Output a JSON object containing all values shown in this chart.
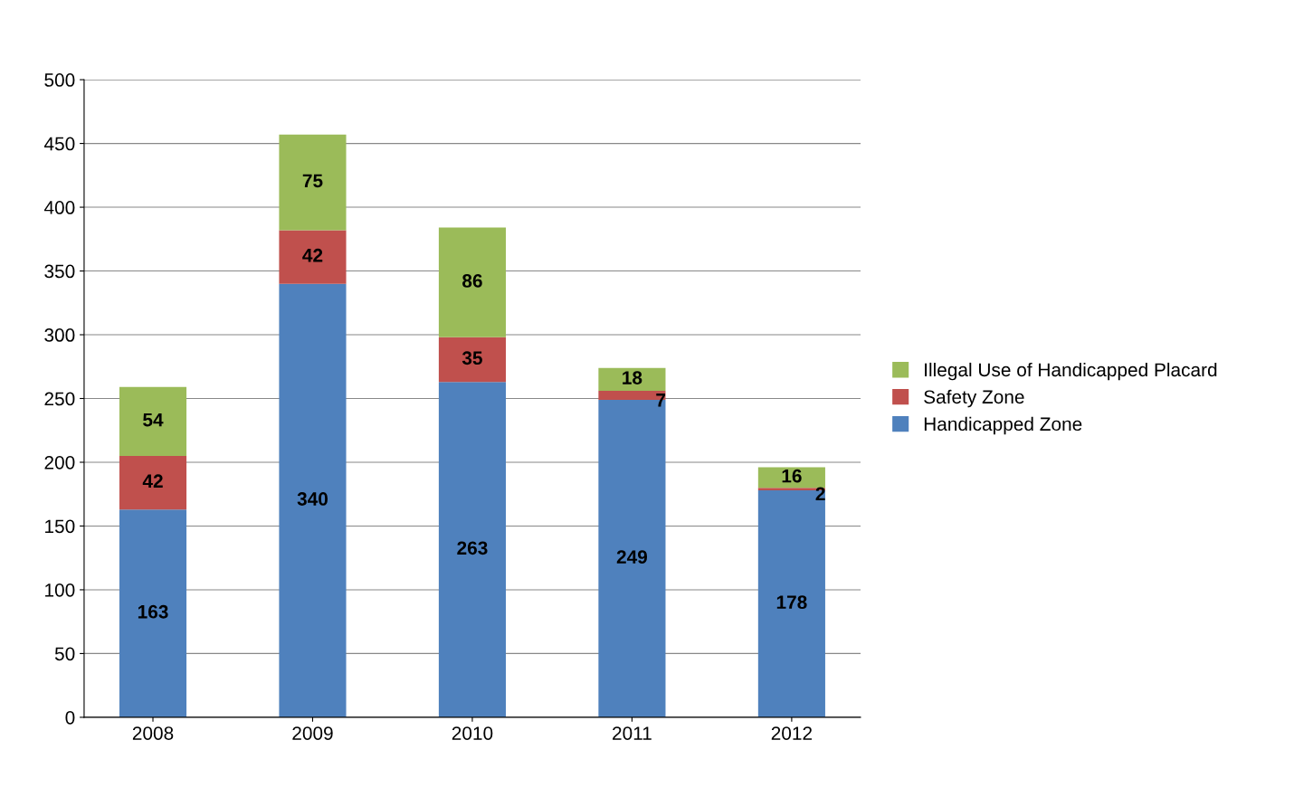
{
  "chart_data": {
    "type": "bar",
    "stacked": true,
    "categories": [
      "2008",
      "2009",
      "2010",
      "2011",
      "2012"
    ],
    "series": [
      {
        "name": "Handicapped Zone",
        "color": "#4f81bd",
        "values": [
          163,
          340,
          263,
          249,
          178
        ]
      },
      {
        "name": "Safety Zone",
        "color": "#c0504d",
        "values": [
          42,
          42,
          35,
          7,
          2
        ]
      },
      {
        "name": "Illegal Use of Handicapped Placard",
        "color": "#9bbb59",
        "values": [
          54,
          75,
          86,
          18,
          16
        ]
      }
    ],
    "ylim": [
      0,
      500
    ],
    "yticks": [
      0,
      50,
      100,
      150,
      200,
      250,
      300,
      350,
      400,
      450,
      500
    ],
    "grid": "y",
    "legend": "right",
    "data_labels": true
  }
}
